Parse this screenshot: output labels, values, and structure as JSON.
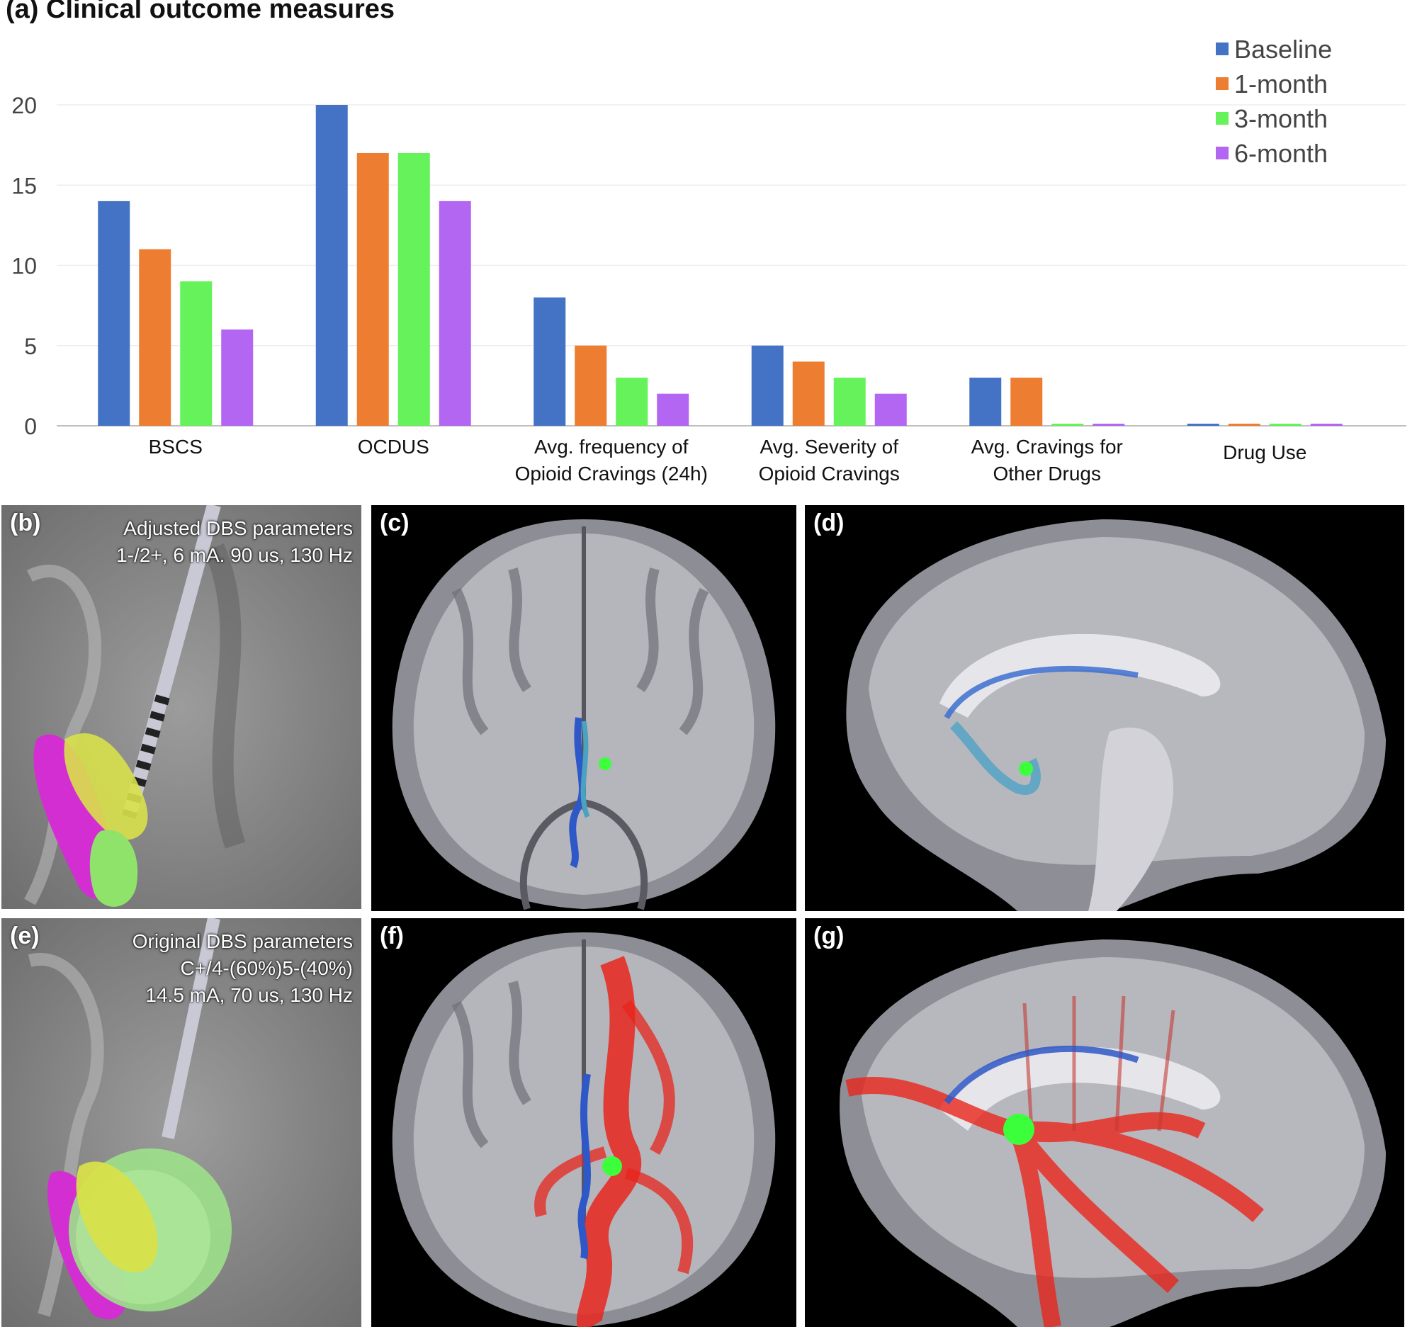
{
  "chart_data": {
    "type": "bar",
    "title": "(a) Clinical outcome measures",
    "categories": [
      [
        "BSCS"
      ],
      [
        "OCDUS"
      ],
      [
        "Avg. frequency of",
        "Opioid Cravings (24h)"
      ],
      [
        "Avg. Severity of",
        "Opioid Cravings"
      ],
      [
        "Avg. Cravings for",
        "Other Drugs"
      ],
      [
        "Drug Use"
      ]
    ],
    "series": [
      {
        "name": "Baseline",
        "color": "#4472C4",
        "values": [
          14,
          20,
          8,
          5,
          3,
          0
        ]
      },
      {
        "name": "1-month",
        "color": "#ED7D31",
        "values": [
          11,
          17,
          5,
          4,
          3,
          0
        ]
      },
      {
        "name": "3-month",
        "color": "#66F25A",
        "values": [
          9,
          17,
          3,
          3,
          0,
          0
        ]
      },
      {
        "name": "6-month",
        "color": "#B266F2",
        "values": [
          6,
          14,
          2,
          2,
          0,
          0
        ]
      }
    ],
    "yticks": [
      0,
      5,
      10,
      15,
      20
    ],
    "ylim": [
      0,
      20
    ],
    "grid": true,
    "legend": "top-right"
  },
  "panels": {
    "b": {
      "label": "(b)",
      "params": [
        "Adjusted DBS parameters",
        "1-/2+, 6 mA. 90 us, 130 Hz"
      ]
    },
    "c": {
      "label": "(c)"
    },
    "d": {
      "label": "(d)"
    },
    "e": {
      "label": "(e)",
      "params": [
        "Original DBS parameters",
        "C+/4-(60%)5-(40%)",
        "14.5 mA, 70 us, 130 Hz"
      ]
    },
    "f": {
      "label": "(f)"
    },
    "g": {
      "label": "(g)"
    }
  }
}
